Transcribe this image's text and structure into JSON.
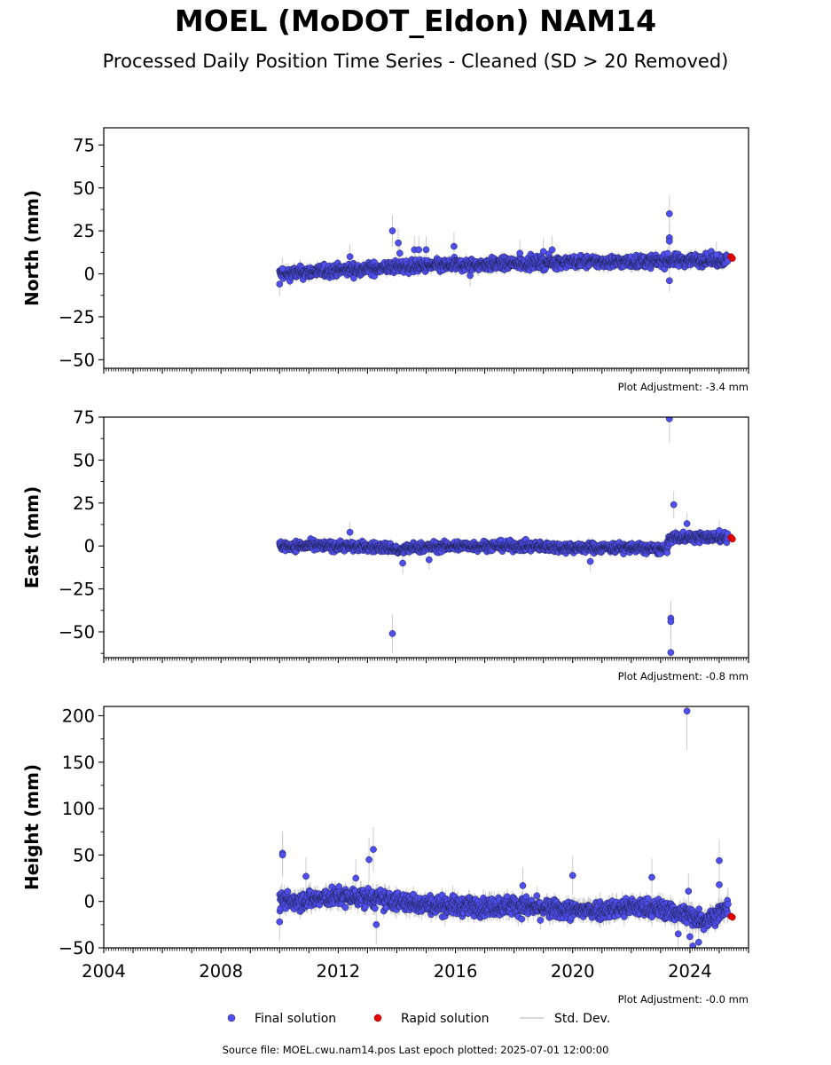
{
  "title": "MOEL (MoDOT_Eldon) NAM14",
  "subtitle": "Processed Daily Position Time Series - Cleaned (SD > 20 Removed)",
  "footer": "Source file: MOEL.cwu.nam14.pos  Last epoch plotted: 2025-07-01 12:00:00",
  "colors": {
    "final": "#4f4ff0",
    "final_edge": "#1a1a3a",
    "rapid": "#e60000",
    "std": "#cccccc"
  },
  "legend": [
    {
      "label": "Final solution",
      "marker": "dot-blue"
    },
    {
      "label": "Rapid solution",
      "marker": "dot-red"
    },
    {
      "label": "Std. Dev.",
      "marker": "line-gray"
    }
  ],
  "chart_data": [
    {
      "type": "scatter",
      "ylabel": "North (mm)",
      "xlim": [
        2004,
        2026
      ],
      "ylim": [
        -55,
        85
      ],
      "yticks": [
        -50,
        -25,
        0,
        25,
        50,
        75
      ],
      "adjustment": "Plot Adjustment: -3.4 mm",
      "show_xtick_labels": false,
      "trend": [
        [
          2010.0,
          0
        ],
        [
          2012.0,
          2
        ],
        [
          2014.0,
          4
        ],
        [
          2016.0,
          5
        ],
        [
          2018.0,
          6
        ],
        [
          2020.0,
          7
        ],
        [
          2022.0,
          7
        ],
        [
          2024.0,
          8
        ],
        [
          2025.3,
          8
        ]
      ],
      "noise": 2.5,
      "outliers": [
        [
          2010.0,
          -6
        ],
        [
          2010.1,
          3
        ],
        [
          2012.4,
          10
        ],
        [
          2013.85,
          25
        ],
        [
          2014.05,
          18
        ],
        [
          2014.1,
          12
        ],
        [
          2014.6,
          14
        ],
        [
          2014.75,
          14
        ],
        [
          2015.0,
          14
        ],
        [
          2015.95,
          16
        ],
        [
          2016.5,
          -1
        ],
        [
          2018.2,
          12
        ],
        [
          2019.0,
          13
        ],
        [
          2019.3,
          14
        ],
        [
          2023.3,
          35
        ],
        [
          2023.3,
          21
        ],
        [
          2023.3,
          19
        ],
        [
          2023.3,
          -4
        ],
        [
          2024.9,
          11
        ]
      ],
      "rapid": [
        [
          2025.4,
          10
        ],
        [
          2025.45,
          9
        ]
      ]
    },
    {
      "type": "scatter",
      "ylabel": "East (mm)",
      "xlim": [
        2004,
        2026
      ],
      "ylim": [
        -65,
        75
      ],
      "yticks": [
        -50,
        -25,
        0,
        25,
        50,
        75
      ],
      "adjustment": "Plot Adjustment: -0.8 mm",
      "show_xtick_labels": false,
      "trend": [
        [
          2010.0,
          0
        ],
        [
          2012.0,
          0
        ],
        [
          2013.8,
          -1
        ],
        [
          2014.1,
          -3
        ],
        [
          2014.5,
          -1
        ],
        [
          2016.0,
          0
        ],
        [
          2018.0,
          0
        ],
        [
          2020.0,
          -1
        ],
        [
          2022.0,
          -1
        ],
        [
          2023.2,
          -2
        ],
        [
          2023.35,
          5
        ],
        [
          2024.5,
          5
        ],
        [
          2025.3,
          5
        ]
      ],
      "noise": 2.0,
      "outliers": [
        [
          2012.4,
          8
        ],
        [
          2013.85,
          -51
        ],
        [
          2014.2,
          -10
        ],
        [
          2015.1,
          -8
        ],
        [
          2020.6,
          -9
        ],
        [
          2023.3,
          74
        ],
        [
          2023.35,
          -42
        ],
        [
          2023.35,
          -44
        ],
        [
          2023.35,
          -62
        ],
        [
          2023.45,
          24
        ],
        [
          2023.9,
          13
        ],
        [
          2025.0,
          9
        ]
      ],
      "rapid": [
        [
          2025.4,
          5
        ],
        [
          2025.45,
          4
        ]
      ]
    },
    {
      "type": "scatter",
      "ylabel": "Height (mm)",
      "xlim": [
        2004,
        2026
      ],
      "ylim": [
        -50,
        210
      ],
      "yticks": [
        -50,
        0,
        50,
        100,
        150,
        200
      ],
      "xticks": [
        2004,
        2008,
        2012,
        2016,
        2020,
        2024
      ],
      "adjustment": "Plot Adjustment: -0.0 mm",
      "show_xtick_labels": true,
      "trend": [
        [
          2010.0,
          0
        ],
        [
          2011.0,
          2
        ],
        [
          2012.0,
          5
        ],
        [
          2013.0,
          4
        ],
        [
          2014.0,
          0
        ],
        [
          2015.0,
          -3
        ],
        [
          2016.0,
          -5
        ],
        [
          2017.0,
          -6
        ],
        [
          2018.0,
          -4
        ],
        [
          2019.0,
          -8
        ],
        [
          2020.0,
          -10
        ],
        [
          2021.0,
          -9
        ],
        [
          2022.0,
          -6
        ],
        [
          2023.0,
          -8
        ],
        [
          2024.0,
          -15
        ],
        [
          2024.5,
          -20
        ],
        [
          2025.0,
          -12
        ],
        [
          2025.3,
          -8
        ]
      ],
      "noise": 7.0,
      "outliers": [
        [
          2010.1,
          52
        ],
        [
          2010.1,
          50
        ],
        [
          2010.0,
          -22
        ],
        [
          2010.9,
          27
        ],
        [
          2012.6,
          25
        ],
        [
          2013.05,
          45
        ],
        [
          2013.2,
          56
        ],
        [
          2013.3,
          -25
        ],
        [
          2018.3,
          17
        ],
        [
          2020.0,
          28
        ],
        [
          2022.7,
          26
        ],
        [
          2023.6,
          -35
        ],
        [
          2023.9,
          205
        ],
        [
          2023.95,
          11
        ],
        [
          2024.0,
          -38
        ],
        [
          2024.3,
          -44
        ],
        [
          2024.1,
          -48
        ],
        [
          2025.0,
          44
        ],
        [
          2025.0,
          18
        ],
        [
          2025.3,
          -3
        ]
      ],
      "rapid": [
        [
          2025.4,
          -16
        ],
        [
          2025.45,
          -17
        ]
      ]
    }
  ]
}
